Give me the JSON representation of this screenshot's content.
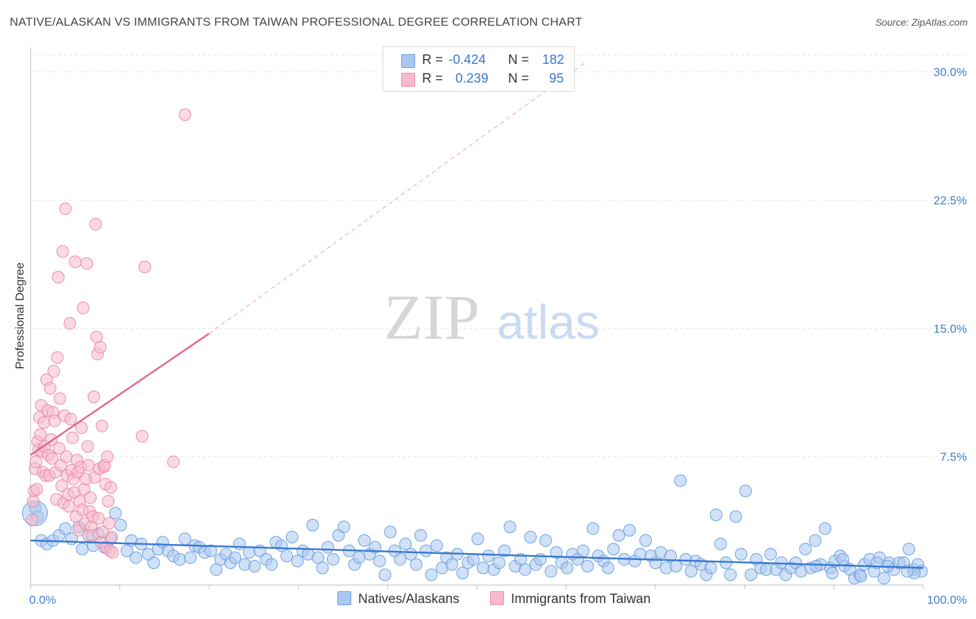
{
  "title": "NATIVE/ALASKAN VS IMMIGRANTS FROM TAIWAN PROFESSIONAL DEGREE CORRELATION CHART",
  "source": "Source: ZipAtlas.com",
  "watermark": {
    "zip": "ZIP",
    "atlas": "atlas"
  },
  "legend": {
    "r_label": "R =",
    "n_label": "N =",
    "series": [
      {
        "name": "Natives/Alaskans",
        "r": "-0.424",
        "n": "182",
        "fill": "#a9c8f0",
        "stroke": "#6a9ee0"
      },
      {
        "name": "Immigrants from Taiwan",
        "r": "0.239",
        "n": "95",
        "fill": "#f7b9cb",
        "stroke": "#e98aa8"
      }
    ]
  },
  "colors": {
    "blue_line": "#3a78cf",
    "pink_line": "#e8628f",
    "axis_text": "#3f7fd1",
    "grid": "#e3e3e3"
  },
  "chart_data": {
    "type": "scatter",
    "title": "NATIVE/ALASKAN VS IMMIGRANTS FROM TAIWAN PROFESSIONAL DEGREE CORRELATION CHART",
    "xlabel": "",
    "ylabel": "Professional Degree",
    "xlim": [
      0,
      100
    ],
    "ylim": [
      0,
      31
    ],
    "x_tick_labels": [
      "0.0%",
      "100.0%"
    ],
    "y_ticks": [
      7.5,
      15.0,
      22.5,
      30.0
    ],
    "y_tick_labels": [
      "7.5%",
      "15.0%",
      "22.5%",
      "30.0%"
    ],
    "grid": true,
    "series": [
      {
        "name": "Natives/Alaskans",
        "trend": {
          "x": [
            0,
            100
          ],
          "y": [
            2.6,
            1.0
          ],
          "dashed_after": null
        },
        "points": [
          [
            0.5,
            4.5
          ],
          [
            0.8,
            4.0
          ],
          [
            1.2,
            2.6
          ],
          [
            1.8,
            2.4
          ],
          [
            2.5,
            2.6
          ],
          [
            3.2,
            2.9
          ],
          [
            3.9,
            3.3
          ],
          [
            4.6,
            2.7
          ],
          [
            5.4,
            3.4
          ],
          [
            5.8,
            2.1
          ],
          [
            6.5,
            2.9
          ],
          [
            7.0,
            2.3
          ],
          [
            7.6,
            3.0
          ],
          [
            8.3,
            2.2
          ],
          [
            9.0,
            2.7
          ],
          [
            9.5,
            4.2
          ],
          [
            10.1,
            3.5
          ],
          [
            10.8,
            2.0
          ],
          [
            11.3,
            2.6
          ],
          [
            11.8,
            1.6
          ],
          [
            12.4,
            2.4
          ],
          [
            13.2,
            1.8
          ],
          [
            13.8,
            1.3
          ],
          [
            14.3,
            2.1
          ],
          [
            14.8,
            2.5
          ],
          [
            15.4,
            2.0
          ],
          [
            16.0,
            1.7
          ],
          [
            16.7,
            1.5
          ],
          [
            17.3,
            2.7
          ],
          [
            17.9,
            1.6
          ],
          [
            18.4,
            2.3
          ],
          [
            18.9,
            2.2
          ],
          [
            19.5,
            1.9
          ],
          [
            20.2,
            2.0
          ],
          [
            20.8,
            0.9
          ],
          [
            21.3,
            1.5
          ],
          [
            21.9,
            1.8
          ],
          [
            22.4,
            1.3
          ],
          [
            22.9,
            1.6
          ],
          [
            23.4,
            2.4
          ],
          [
            24.0,
            1.2
          ],
          [
            24.5,
            1.9
          ],
          [
            25.1,
            1.1
          ],
          [
            25.7,
            2.0
          ],
          [
            26.4,
            1.5
          ],
          [
            27.0,
            1.2
          ],
          [
            27.5,
            2.5
          ],
          [
            28.1,
            2.3
          ],
          [
            28.7,
            1.7
          ],
          [
            29.3,
            2.8
          ],
          [
            29.9,
            1.4
          ],
          [
            30.5,
            2.0
          ],
          [
            31.1,
            1.8
          ],
          [
            31.6,
            3.5
          ],
          [
            32.2,
            1.6
          ],
          [
            32.7,
            1.0
          ],
          [
            33.3,
            2.2
          ],
          [
            33.9,
            1.5
          ],
          [
            34.5,
            2.9
          ],
          [
            35.1,
            3.4
          ],
          [
            35.7,
            2.0
          ],
          [
            36.3,
            1.2
          ],
          [
            36.8,
            1.6
          ],
          [
            37.4,
            2.6
          ],
          [
            38.0,
            1.8
          ],
          [
            38.6,
            2.2
          ],
          [
            39.1,
            1.4
          ],
          [
            39.7,
            0.6
          ],
          [
            40.3,
            3.1
          ],
          [
            40.8,
            2.0
          ],
          [
            41.4,
            1.5
          ],
          [
            42.0,
            2.4
          ],
          [
            42.6,
            1.8
          ],
          [
            43.2,
            1.2
          ],
          [
            43.7,
            2.9
          ],
          [
            44.3,
            2.0
          ],
          [
            44.9,
            0.6
          ],
          [
            45.5,
            2.3
          ],
          [
            46.1,
            1.0
          ],
          [
            46.6,
            1.6
          ],
          [
            47.2,
            1.2
          ],
          [
            47.8,
            1.8
          ],
          [
            48.4,
            0.7
          ],
          [
            49.0,
            1.3
          ],
          [
            49.6,
            1.5
          ],
          [
            50.1,
            2.7
          ],
          [
            50.7,
            1.0
          ],
          [
            51.3,
            1.7
          ],
          [
            51.9,
            0.9
          ],
          [
            52.5,
            1.3
          ],
          [
            53.1,
            2.0
          ],
          [
            53.7,
            3.4
          ],
          [
            54.3,
            1.1
          ],
          [
            54.9,
            1.5
          ],
          [
            55.4,
            0.9
          ],
          [
            56.0,
            2.8
          ],
          [
            56.6,
            1.2
          ],
          [
            57.1,
            1.5
          ],
          [
            57.7,
            2.6
          ],
          [
            58.3,
            0.8
          ],
          [
            58.9,
            1.9
          ],
          [
            59.5,
            1.3
          ],
          [
            60.1,
            1.0
          ],
          [
            60.7,
            1.8
          ],
          [
            61.3,
            1.5
          ],
          [
            61.9,
            2.0
          ],
          [
            62.4,
            1.1
          ],
          [
            63.0,
            3.3
          ],
          [
            63.6,
            1.7
          ],
          [
            64.2,
            1.4
          ],
          [
            64.7,
            1.0
          ],
          [
            65.3,
            2.1
          ],
          [
            65.9,
            2.9
          ],
          [
            66.5,
            1.5
          ],
          [
            67.1,
            3.2
          ],
          [
            67.7,
            1.4
          ],
          [
            68.3,
            1.8
          ],
          [
            68.9,
            2.6
          ],
          [
            69.5,
            1.7
          ],
          [
            70.0,
            1.3
          ],
          [
            70.6,
            1.9
          ],
          [
            71.2,
            1.0
          ],
          [
            71.7,
            1.7
          ],
          [
            72.3,
            1.1
          ],
          [
            72.8,
            6.1
          ],
          [
            73.4,
            1.5
          ],
          [
            74.0,
            0.8
          ],
          [
            74.5,
            1.4
          ],
          [
            75.1,
            1.2
          ],
          [
            75.7,
            0.6
          ],
          [
            76.2,
            1.0
          ],
          [
            76.8,
            4.1
          ],
          [
            77.3,
            2.4
          ],
          [
            77.9,
            1.3
          ],
          [
            78.4,
            0.6
          ],
          [
            79.0,
            4.0
          ],
          [
            79.6,
            1.8
          ],
          [
            80.1,
            5.5
          ],
          [
            80.7,
            0.6
          ],
          [
            81.3,
            1.5
          ],
          [
            81.8,
            1.0
          ],
          [
            82.4,
            0.9
          ],
          [
            82.9,
            1.8
          ],
          [
            83.5,
            0.9
          ],
          [
            84.1,
            1.3
          ],
          [
            84.6,
            0.6
          ],
          [
            85.2,
            1.0
          ],
          [
            85.7,
            1.3
          ],
          [
            86.3,
            0.8
          ],
          [
            86.8,
            2.1
          ],
          [
            87.4,
            1.0
          ],
          [
            87.9,
            2.6
          ],
          [
            88.5,
            1.2
          ],
          [
            89.0,
            3.3
          ],
          [
            89.6,
            1.0
          ],
          [
            90.1,
            1.4
          ],
          [
            90.7,
            1.7
          ],
          [
            91.2,
            1.1
          ],
          [
            91.8,
            0.9
          ],
          [
            92.3,
            0.4
          ],
          [
            92.9,
            0.6
          ],
          [
            93.4,
            1.2
          ],
          [
            94.0,
            1.5
          ],
          [
            94.5,
            0.8
          ],
          [
            95.1,
            1.6
          ],
          [
            95.6,
            0.4
          ],
          [
            96.2,
            1.3
          ],
          [
            96.7,
            0.9
          ],
          [
            97.3,
            1.3
          ],
          [
            97.8,
            1.3
          ],
          [
            98.4,
            2.1
          ],
          [
            98.9,
            0.9
          ],
          [
            99.4,
            1.2
          ],
          [
            99.8,
            0.8
          ],
          [
            99.0,
            0.7
          ],
          [
            98.2,
            0.8
          ],
          [
            96.0,
            1.1
          ],
          [
            94.8,
            1.3
          ],
          [
            93.0,
            0.5
          ],
          [
            91.0,
            1.5
          ],
          [
            89.8,
            0.7
          ],
          [
            88.0,
            1.1
          ]
        ]
      },
      {
        "name": "Immigrants from Taiwan",
        "trend": {
          "x": [
            0,
            20
          ],
          "y": [
            7.6,
            14.7
          ],
          "dashed_extension": {
            "x": [
              20,
              62
            ],
            "y": [
              14.7,
              30.5
            ]
          }
        },
        "points": [
          [
            0.2,
            3.8
          ],
          [
            0.3,
            4.9
          ],
          [
            0.4,
            5.5
          ],
          [
            0.5,
            6.8
          ],
          [
            0.6,
            7.2
          ],
          [
            0.7,
            5.6
          ],
          [
            0.8,
            8.4
          ],
          [
            0.9,
            7.9
          ],
          [
            1.0,
            9.8
          ],
          [
            1.1,
            8.8
          ],
          [
            1.2,
            10.5
          ],
          [
            1.3,
            7.8
          ],
          [
            1.4,
            6.6
          ],
          [
            1.5,
            9.5
          ],
          [
            1.6,
            8.1
          ],
          [
            1.7,
            6.4
          ],
          [
            1.8,
            12.0
          ],
          [
            1.9,
            10.2
          ],
          [
            2.0,
            7.6
          ],
          [
            2.1,
            6.4
          ],
          [
            2.2,
            11.5
          ],
          [
            2.3,
            8.5
          ],
          [
            2.4,
            7.4
          ],
          [
            2.5,
            10.1
          ],
          [
            2.6,
            12.5
          ],
          [
            2.7,
            9.6
          ],
          [
            2.8,
            6.6
          ],
          [
            2.9,
            5.0
          ],
          [
            3.0,
            13.3
          ],
          [
            3.1,
            18.0
          ],
          [
            3.2,
            8.0
          ],
          [
            3.3,
            10.9
          ],
          [
            3.4,
            7.0
          ],
          [
            3.5,
            5.8
          ],
          [
            3.6,
            19.5
          ],
          [
            3.7,
            4.8
          ],
          [
            3.8,
            9.9
          ],
          [
            3.9,
            22.0
          ],
          [
            4.0,
            7.5
          ],
          [
            4.1,
            6.4
          ],
          [
            4.2,
            5.3
          ],
          [
            4.3,
            4.6
          ],
          [
            4.4,
            15.3
          ],
          [
            4.5,
            9.7
          ],
          [
            4.6,
            6.7
          ],
          [
            4.7,
            8.6
          ],
          [
            4.8,
            6.2
          ],
          [
            4.9,
            5.4
          ],
          [
            5.0,
            18.9
          ],
          [
            5.1,
            4.0
          ],
          [
            5.2,
            7.3
          ],
          [
            5.3,
            6.6
          ],
          [
            5.4,
            3.2
          ],
          [
            5.5,
            4.9
          ],
          [
            5.6,
            6.9
          ],
          [
            5.7,
            9.2
          ],
          [
            5.8,
            4.4
          ],
          [
            5.9,
            16.2
          ],
          [
            6.0,
            5.6
          ],
          [
            6.1,
            3.6
          ],
          [
            6.2,
            6.2
          ],
          [
            6.3,
            18.8
          ],
          [
            6.4,
            8.1
          ],
          [
            6.5,
            7.0
          ],
          [
            6.6,
            4.3
          ],
          [
            6.7,
            5.1
          ],
          [
            6.8,
            3.4
          ],
          [
            6.9,
            2.9
          ],
          [
            7.0,
            4.0
          ],
          [
            7.1,
            11.0
          ],
          [
            7.2,
            6.3
          ],
          [
            7.3,
            21.1
          ],
          [
            7.4,
            14.5
          ],
          [
            7.5,
            13.5
          ],
          [
            7.6,
            3.9
          ],
          [
            7.7,
            6.8
          ],
          [
            7.8,
            13.9
          ],
          [
            7.9,
            2.5
          ],
          [
            8.0,
            9.3
          ],
          [
            8.1,
            3.1
          ],
          [
            8.2,
            6.9
          ],
          [
            8.3,
            7.0
          ],
          [
            8.4,
            5.9
          ],
          [
            8.5,
            2.2
          ],
          [
            8.6,
            7.5
          ],
          [
            8.7,
            4.9
          ],
          [
            8.8,
            3.6
          ],
          [
            8.9,
            2.0
          ],
          [
            9.0,
            5.7
          ],
          [
            9.1,
            2.8
          ],
          [
            9.2,
            1.9
          ],
          [
            12.5,
            8.7
          ],
          [
            12.8,
            18.6
          ],
          [
            16.0,
            7.2
          ],
          [
            17.3,
            27.5
          ]
        ]
      }
    ]
  }
}
